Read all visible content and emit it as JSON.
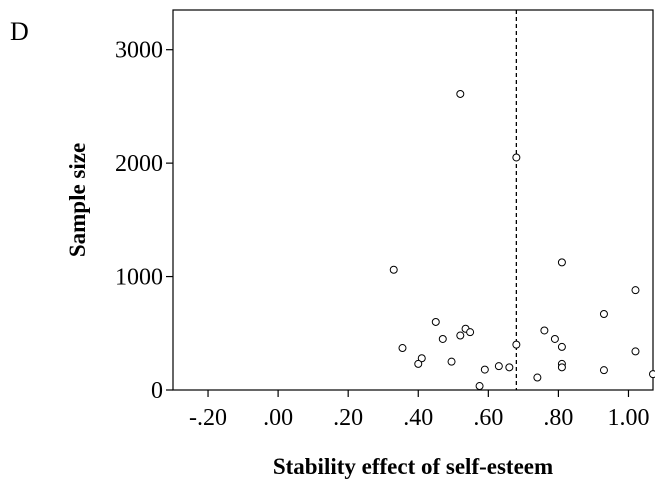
{
  "panel_label": "D",
  "chart_data": {
    "type": "scatter",
    "title": "",
    "xlabel": "Stability effect of self-esteem",
    "ylabel": "Sample size",
    "xlim": [
      -0.3,
      1.07
    ],
    "ylim": [
      0,
      3350
    ],
    "x_ticks": [
      -0.2,
      0.0,
      0.2,
      0.4,
      0.6,
      0.8,
      1.0
    ],
    "x_tick_labels": [
      "-.20",
      ".00",
      ".20",
      ".40",
      ".60",
      ".80",
      "1.00"
    ],
    "y_ticks": [
      0,
      1000,
      2000,
      3000
    ],
    "y_tick_labels": [
      "0",
      "1000",
      "2000",
      "3000"
    ],
    "reference_line": {
      "x": 0.68,
      "style": "dashed"
    },
    "marker": "open-circle",
    "grid": false,
    "points": [
      {
        "x": 0.52,
        "y": 2610
      },
      {
        "x": 0.68,
        "y": 2050
      },
      {
        "x": 0.33,
        "y": 1060
      },
      {
        "x": 0.81,
        "y": 1125
      },
      {
        "x": 1.02,
        "y": 880
      },
      {
        "x": 0.93,
        "y": 670
      },
      {
        "x": 0.45,
        "y": 600
      },
      {
        "x": 0.535,
        "y": 540
      },
      {
        "x": 0.548,
        "y": 510
      },
      {
        "x": 0.52,
        "y": 480
      },
      {
        "x": 0.76,
        "y": 525
      },
      {
        "x": 0.47,
        "y": 450
      },
      {
        "x": 0.79,
        "y": 450
      },
      {
        "x": 0.68,
        "y": 400
      },
      {
        "x": 0.355,
        "y": 370
      },
      {
        "x": 0.81,
        "y": 380
      },
      {
        "x": 1.02,
        "y": 340
      },
      {
        "x": 0.41,
        "y": 280
      },
      {
        "x": 0.4,
        "y": 230
      },
      {
        "x": 0.495,
        "y": 250
      },
      {
        "x": 0.63,
        "y": 210
      },
      {
        "x": 0.66,
        "y": 200
      },
      {
        "x": 0.59,
        "y": 180
      },
      {
        "x": 0.81,
        "y": 230
      },
      {
        "x": 0.81,
        "y": 200
      },
      {
        "x": 0.93,
        "y": 175
      },
      {
        "x": 0.74,
        "y": 110
      },
      {
        "x": 0.575,
        "y": 35
      },
      {
        "x": 1.07,
        "y": 140
      }
    ]
  }
}
